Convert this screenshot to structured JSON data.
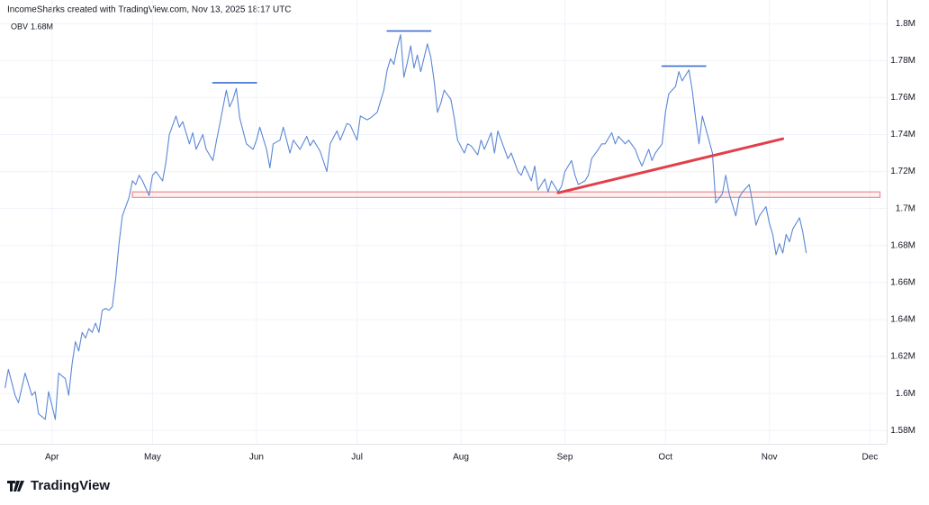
{
  "header": "IncomeSharks created with TradingView.com, Nov 13, 2025 18:17 UTC",
  "footer": "TradingView",
  "chart_data": {
    "type": "line",
    "grid": true,
    "xlim": [
      75.5,
      340
    ],
    "xticks": [
      {
        "value": 91,
        "label": "Apr"
      },
      {
        "value": 121,
        "label": "May"
      },
      {
        "value": 152,
        "label": "Jun"
      },
      {
        "value": 182,
        "label": "Jul"
      },
      {
        "value": 213,
        "label": "Aug"
      },
      {
        "value": 244,
        "label": "Sep"
      },
      {
        "value": 274,
        "label": "Oct"
      },
      {
        "value": 305,
        "label": "Nov"
      },
      {
        "value": 335,
        "label": "Dec"
      }
    ],
    "ylim": [
      1572800,
      1804000
    ],
    "yticks": [
      {
        "value": 1580000,
        "label": "1.58M"
      },
      {
        "value": 1600000,
        "label": "1.6M"
      },
      {
        "value": 1620000,
        "label": "1.62M"
      },
      {
        "value": 1640000,
        "label": "1.64M"
      },
      {
        "value": 1660000,
        "label": "1.66M"
      },
      {
        "value": 1680000,
        "label": "1.68M"
      },
      {
        "value": 1700000,
        "label": "1.7M"
      },
      {
        "value": 1720000,
        "label": "1.72M"
      },
      {
        "value": 1740000,
        "label": "1.74M"
      },
      {
        "value": 1760000,
        "label": "1.76M"
      },
      {
        "value": 1780000,
        "label": "1.78M"
      },
      {
        "value": 1800000,
        "label": "1.8M"
      }
    ],
    "series": [
      {
        "name": "OBV",
        "color": "#5b87d6",
        "last_label": "1.68M",
        "x": [
          77,
          78,
          80,
          81,
          83,
          85,
          86,
          87,
          89,
          90,
          92,
          93,
          95,
          96,
          97,
          98,
          99,
          100,
          101,
          102,
          103,
          104,
          105,
          106,
          107,
          108,
          109,
          110,
          111,
          112,
          114,
          115,
          116,
          117,
          118,
          120,
          121,
          122,
          124,
          125,
          126,
          128,
          129,
          130,
          132,
          133,
          134,
          136,
          137,
          139,
          140,
          141,
          143,
          144,
          145,
          146,
          147,
          149,
          151,
          152,
          153,
          155,
          156,
          157,
          159,
          160,
          162,
          163,
          165,
          167,
          168,
          169,
          171,
          173,
          174,
          176,
          177,
          179,
          180,
          182,
          183,
          185,
          186,
          188,
          190,
          191,
          192,
          193,
          194,
          195,
          196,
          197,
          198,
          199,
          200,
          201,
          203,
          204,
          205,
          206,
          207,
          208,
          210,
          211,
          212,
          214,
          215,
          216,
          218,
          219,
          220,
          222,
          223,
          224,
          226,
          227,
          228,
          230,
          231,
          232,
          234,
          235,
          236,
          238,
          239,
          240,
          242,
          243,
          244,
          246,
          247,
          248,
          250,
          251,
          252,
          254,
          255,
          256,
          258,
          259,
          260,
          262,
          263,
          265,
          266,
          267,
          269,
          270,
          271,
          273,
          274,
          275,
          277,
          278,
          279,
          281,
          282,
          283,
          284,
          285,
          287,
          288,
          289,
          291,
          292,
          293,
          295,
          296,
          297,
          299,
          300,
          301,
          302,
          304,
          305,
          306,
          307,
          308,
          309,
          310,
          311,
          312,
          314,
          315,
          316
        ],
        "values": [
          1603000,
          1613000,
          1599000,
          1595000,
          1611000,
          1599000,
          1601000,
          1589000,
          1586000,
          1601000,
          1586000,
          1611000,
          1608000,
          1599000,
          1616000,
          1628000,
          1623000,
          1633000,
          1630000,
          1635000,
          1633000,
          1638000,
          1633000,
          1645000,
          1646000,
          1645000,
          1647000,
          1662000,
          1681000,
          1696000,
          1706000,
          1715000,
          1713000,
          1718000,
          1715000,
          1707000,
          1718000,
          1720000,
          1715000,
          1725000,
          1740000,
          1750000,
          1744000,
          1747000,
          1735000,
          1741000,
          1732000,
          1740000,
          1732000,
          1726000,
          1736000,
          1745000,
          1764000,
          1755000,
          1759000,
          1765000,
          1749000,
          1735000,
          1732000,
          1737000,
          1744000,
          1732000,
          1722000,
          1735000,
          1737000,
          1744000,
          1730000,
          1737000,
          1732000,
          1739000,
          1734000,
          1737000,
          1731000,
          1720000,
          1735000,
          1742000,
          1737000,
          1746000,
          1745000,
          1737000,
          1750000,
          1748000,
          1749000,
          1752000,
          1764000,
          1775000,
          1781000,
          1778000,
          1787000,
          1794000,
          1771000,
          1779000,
          1788000,
          1776000,
          1783000,
          1774000,
          1789000,
          1782000,
          1769000,
          1752000,
          1757000,
          1764000,
          1759000,
          1749000,
          1737000,
          1730000,
          1735000,
          1734000,
          1729000,
          1737000,
          1732000,
          1741000,
          1730000,
          1742000,
          1732000,
          1727000,
          1730000,
          1720000,
          1718000,
          1723000,
          1715000,
          1723000,
          1710000,
          1716000,
          1709000,
          1715000,
          1709000,
          1712000,
          1720000,
          1726000,
          1718000,
          1713000,
          1715000,
          1718000,
          1727000,
          1732000,
          1735000,
          1735000,
          1741000,
          1735000,
          1739000,
          1735000,
          1737000,
          1732000,
          1727000,
          1723000,
          1732000,
          1726000,
          1730000,
          1735000,
          1752000,
          1762000,
          1766000,
          1774000,
          1769000,
          1775000,
          1764000,
          1749000,
          1735000,
          1750000,
          1737000,
          1730000,
          1703000,
          1708000,
          1718000,
          1708000,
          1696000,
          1706000,
          1709000,
          1713000,
          1703000,
          1691000,
          1696000,
          1701000,
          1692000,
          1686000,
          1675000,
          1681000,
          1676000,
          1686000,
          1682000,
          1689000,
          1695000,
          1687000,
          1676000
        ]
      }
    ],
    "drawings": [
      {
        "color": "#3c6fd1",
        "x": [
          139,
          152
        ],
        "y": [
          1768000,
          1768000
        ]
      },
      {
        "color": "#3c6fd1",
        "x": [
          191,
          204
        ],
        "y": [
          1796000,
          1796000
        ]
      },
      {
        "color": "#3c6fd1",
        "x": [
          273,
          286
        ],
        "y": [
          1777000,
          1777000
        ]
      },
      {
        "color": "#e0404a",
        "x": [
          242,
          309
        ],
        "y": [
          1708500,
          1737700
        ]
      }
    ],
    "zone": {
      "color": "#f08a92",
      "x": [
        115,
        338
      ],
      "y": [
        1709000,
        1706000
      ]
    }
  }
}
